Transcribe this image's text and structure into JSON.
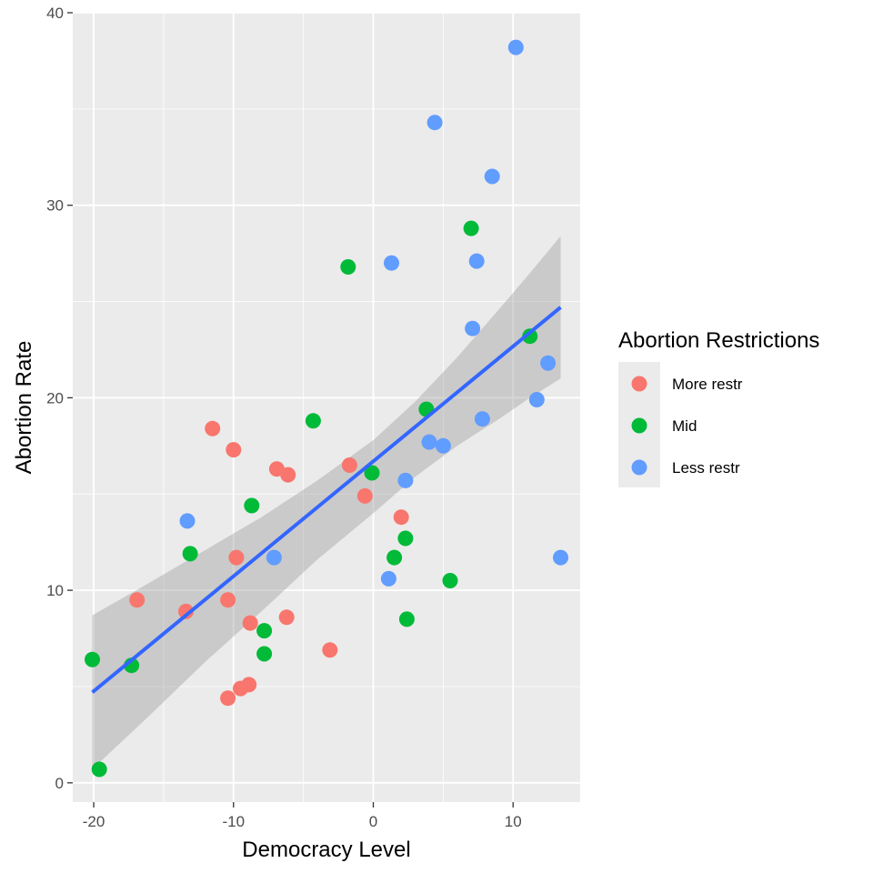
{
  "chart_data": {
    "type": "scatter",
    "xlabel": "Democracy Level",
    "ylabel": "Abortion Rate",
    "xlim": [
      -21.5,
      14.8
    ],
    "ylim": [
      -1.0,
      40.0
    ],
    "x_ticks": [
      -20,
      -10,
      0,
      10
    ],
    "x_tick_labels": [
      "-20",
      "-10",
      "0",
      "10"
    ],
    "y_ticks": [
      0,
      10,
      20,
      30,
      40
    ],
    "y_tick_labels": [
      "0",
      "10",
      "20",
      "30",
      "40"
    ],
    "grid": true,
    "legend": {
      "title": "Abortion Restrictions",
      "position": "right"
    },
    "colors": {
      "panel": "#ebebeb",
      "grid_major": "#ffffff",
      "ribbon": "#999999",
      "trend": "#3366ff",
      "tick_text": "#4d4d4d"
    },
    "series": [
      {
        "name": "More restr",
        "color": "#f8766d",
        "points": [
          {
            "x": -11.5,
            "y": 18.4
          },
          {
            "x": -10.0,
            "y": 17.3
          },
          {
            "x": -6.9,
            "y": 16.3
          },
          {
            "x": -6.1,
            "y": 16.0
          },
          {
            "x": -1.7,
            "y": 16.5
          },
          {
            "x": -0.6,
            "y": 14.9
          },
          {
            "x": 2.0,
            "y": 13.8
          },
          {
            "x": -9.8,
            "y": 11.7
          },
          {
            "x": -16.9,
            "y": 9.5
          },
          {
            "x": -13.4,
            "y": 8.9
          },
          {
            "x": -10.4,
            "y": 9.5
          },
          {
            "x": -8.8,
            "y": 8.3
          },
          {
            "x": -6.2,
            "y": 8.6
          },
          {
            "x": -3.1,
            "y": 6.9
          },
          {
            "x": -10.4,
            "y": 4.4
          },
          {
            "x": -9.5,
            "y": 4.9
          },
          {
            "x": -8.9,
            "y": 5.1
          }
        ]
      },
      {
        "name": "Mid",
        "color": "#00ba38",
        "points": [
          {
            "x": -20.1,
            "y": 6.4
          },
          {
            "x": -19.6,
            "y": 0.7
          },
          {
            "x": -17.3,
            "y": 6.1
          },
          {
            "x": -13.1,
            "y": 11.9
          },
          {
            "x": -8.7,
            "y": 14.4
          },
          {
            "x": -7.8,
            "y": 7.9
          },
          {
            "x": -7.8,
            "y": 6.7
          },
          {
            "x": -4.3,
            "y": 18.8
          },
          {
            "x": -1.8,
            "y": 26.8
          },
          {
            "x": -0.1,
            "y": 16.1
          },
          {
            "x": 1.5,
            "y": 11.7
          },
          {
            "x": 2.3,
            "y": 12.7
          },
          {
            "x": 2.4,
            "y": 8.5
          },
          {
            "x": 3.8,
            "y": 19.4
          },
          {
            "x": 5.5,
            "y": 10.5
          },
          {
            "x": 7.0,
            "y": 28.8
          },
          {
            "x": 11.2,
            "y": 23.2
          }
        ]
      },
      {
        "name": "Less restr",
        "color": "#619cff",
        "points": [
          {
            "x": -13.3,
            "y": 13.6
          },
          {
            "x": -7.1,
            "y": 11.7
          },
          {
            "x": 1.1,
            "y": 10.6
          },
          {
            "x": 1.3,
            "y": 27.0
          },
          {
            "x": 2.3,
            "y": 15.7
          },
          {
            "x": 4.0,
            "y": 17.7
          },
          {
            "x": 4.4,
            "y": 34.3
          },
          {
            "x": 5.0,
            "y": 17.5
          },
          {
            "x": 7.1,
            "y": 23.6
          },
          {
            "x": 7.4,
            "y": 27.1
          },
          {
            "x": 7.8,
            "y": 18.9
          },
          {
            "x": 8.5,
            "y": 31.5
          },
          {
            "x": 10.2,
            "y": 38.2
          },
          {
            "x": 11.7,
            "y": 19.9
          },
          {
            "x": 12.5,
            "y": 21.8
          },
          {
            "x": 13.4,
            "y": 11.7
          }
        ]
      }
    ],
    "trend": {
      "method": "linear",
      "x_range": [
        -20.1,
        13.4
      ],
      "line": [
        [
          -20.1,
          4.7
        ],
        [
          13.4,
          24.7
        ]
      ],
      "ribbon_upper": [
        [
          -20.1,
          8.7
        ],
        [
          -16.0,
          10.4
        ],
        [
          -12.0,
          12.1
        ],
        [
          -8.0,
          13.8
        ],
        [
          -4.0,
          15.7
        ],
        [
          0.0,
          17.8
        ],
        [
          3.0,
          19.8
        ],
        [
          6.0,
          22.1
        ],
        [
          9.0,
          24.6
        ],
        [
          11.0,
          26.3
        ],
        [
          13.4,
          28.4
        ]
      ],
      "ribbon_lower": [
        [
          -20.1,
          0.7
        ],
        [
          -16.0,
          3.5
        ],
        [
          -12.0,
          6.3
        ],
        [
          -8.0,
          8.9
        ],
        [
          -4.0,
          11.6
        ],
        [
          0.0,
          14.0
        ],
        [
          3.0,
          15.9
        ],
        [
          6.0,
          17.5
        ],
        [
          9.0,
          18.9
        ],
        [
          11.0,
          19.9
        ],
        [
          13.4,
          21.0
        ]
      ]
    }
  }
}
